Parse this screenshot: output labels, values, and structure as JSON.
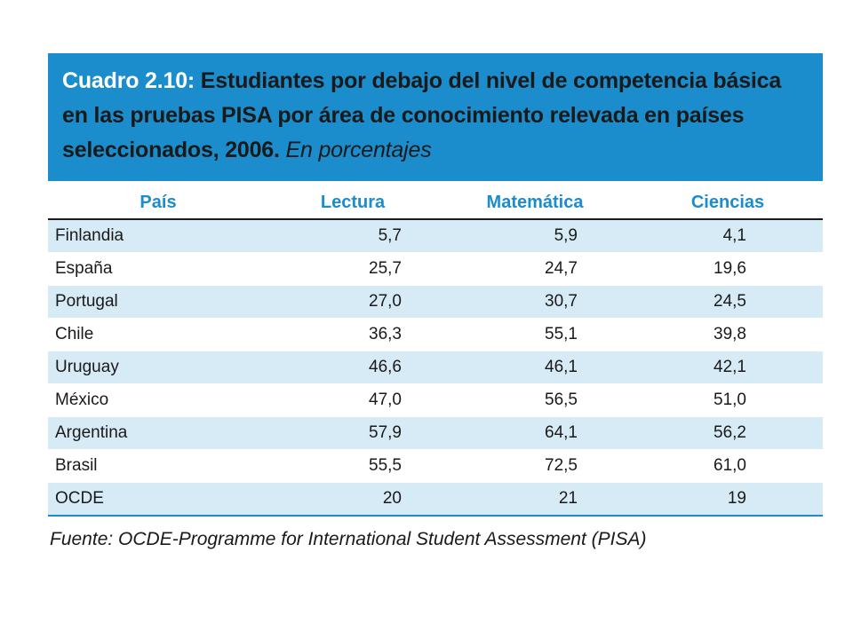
{
  "title": {
    "lead": "Cuadro 2.10:",
    "text": "Estudiantes por debajo del nivel de competencia básica en las pruebas PISA por área de conocimiento relevada en países seleccionados, 2006.",
    "unit": "En porcentajes"
  },
  "colors": {
    "banner": "#1b8ccc",
    "header_text": "#1b8ccc",
    "stripe": "#d7ebf6"
  },
  "table": {
    "headers": {
      "country": "País",
      "reading": "Lectura",
      "math": "Matemática",
      "science": "Ciencias"
    },
    "rows": [
      {
        "country": "Finlandia",
        "reading": "5,7",
        "math": "5,9",
        "science": "4,1"
      },
      {
        "country": "España",
        "reading": "25,7",
        "math": "24,7",
        "science": "19,6"
      },
      {
        "country": "Portugal",
        "reading": "27,0",
        "math": "30,7",
        "science": "24,5"
      },
      {
        "country": "Chile",
        "reading": "36,3",
        "math": "55,1",
        "science": "39,8"
      },
      {
        "country": "Uruguay",
        "reading": "46,6",
        "math": "46,1",
        "science": "42,1"
      },
      {
        "country": "México",
        "reading": "47,0",
        "math": "56,5",
        "science": "51,0"
      },
      {
        "country": "Argentina",
        "reading": "57,9",
        "math": "64,1",
        "science": "56,2"
      },
      {
        "country": "Brasil",
        "reading": "55,5",
        "math": "72,5",
        "science": "61,0"
      },
      {
        "country": "OCDE",
        "reading": "20",
        "math": "21",
        "science": "19"
      }
    ]
  },
  "source": "Fuente: OCDE-Programme for International Student Assessment (PISA)"
}
